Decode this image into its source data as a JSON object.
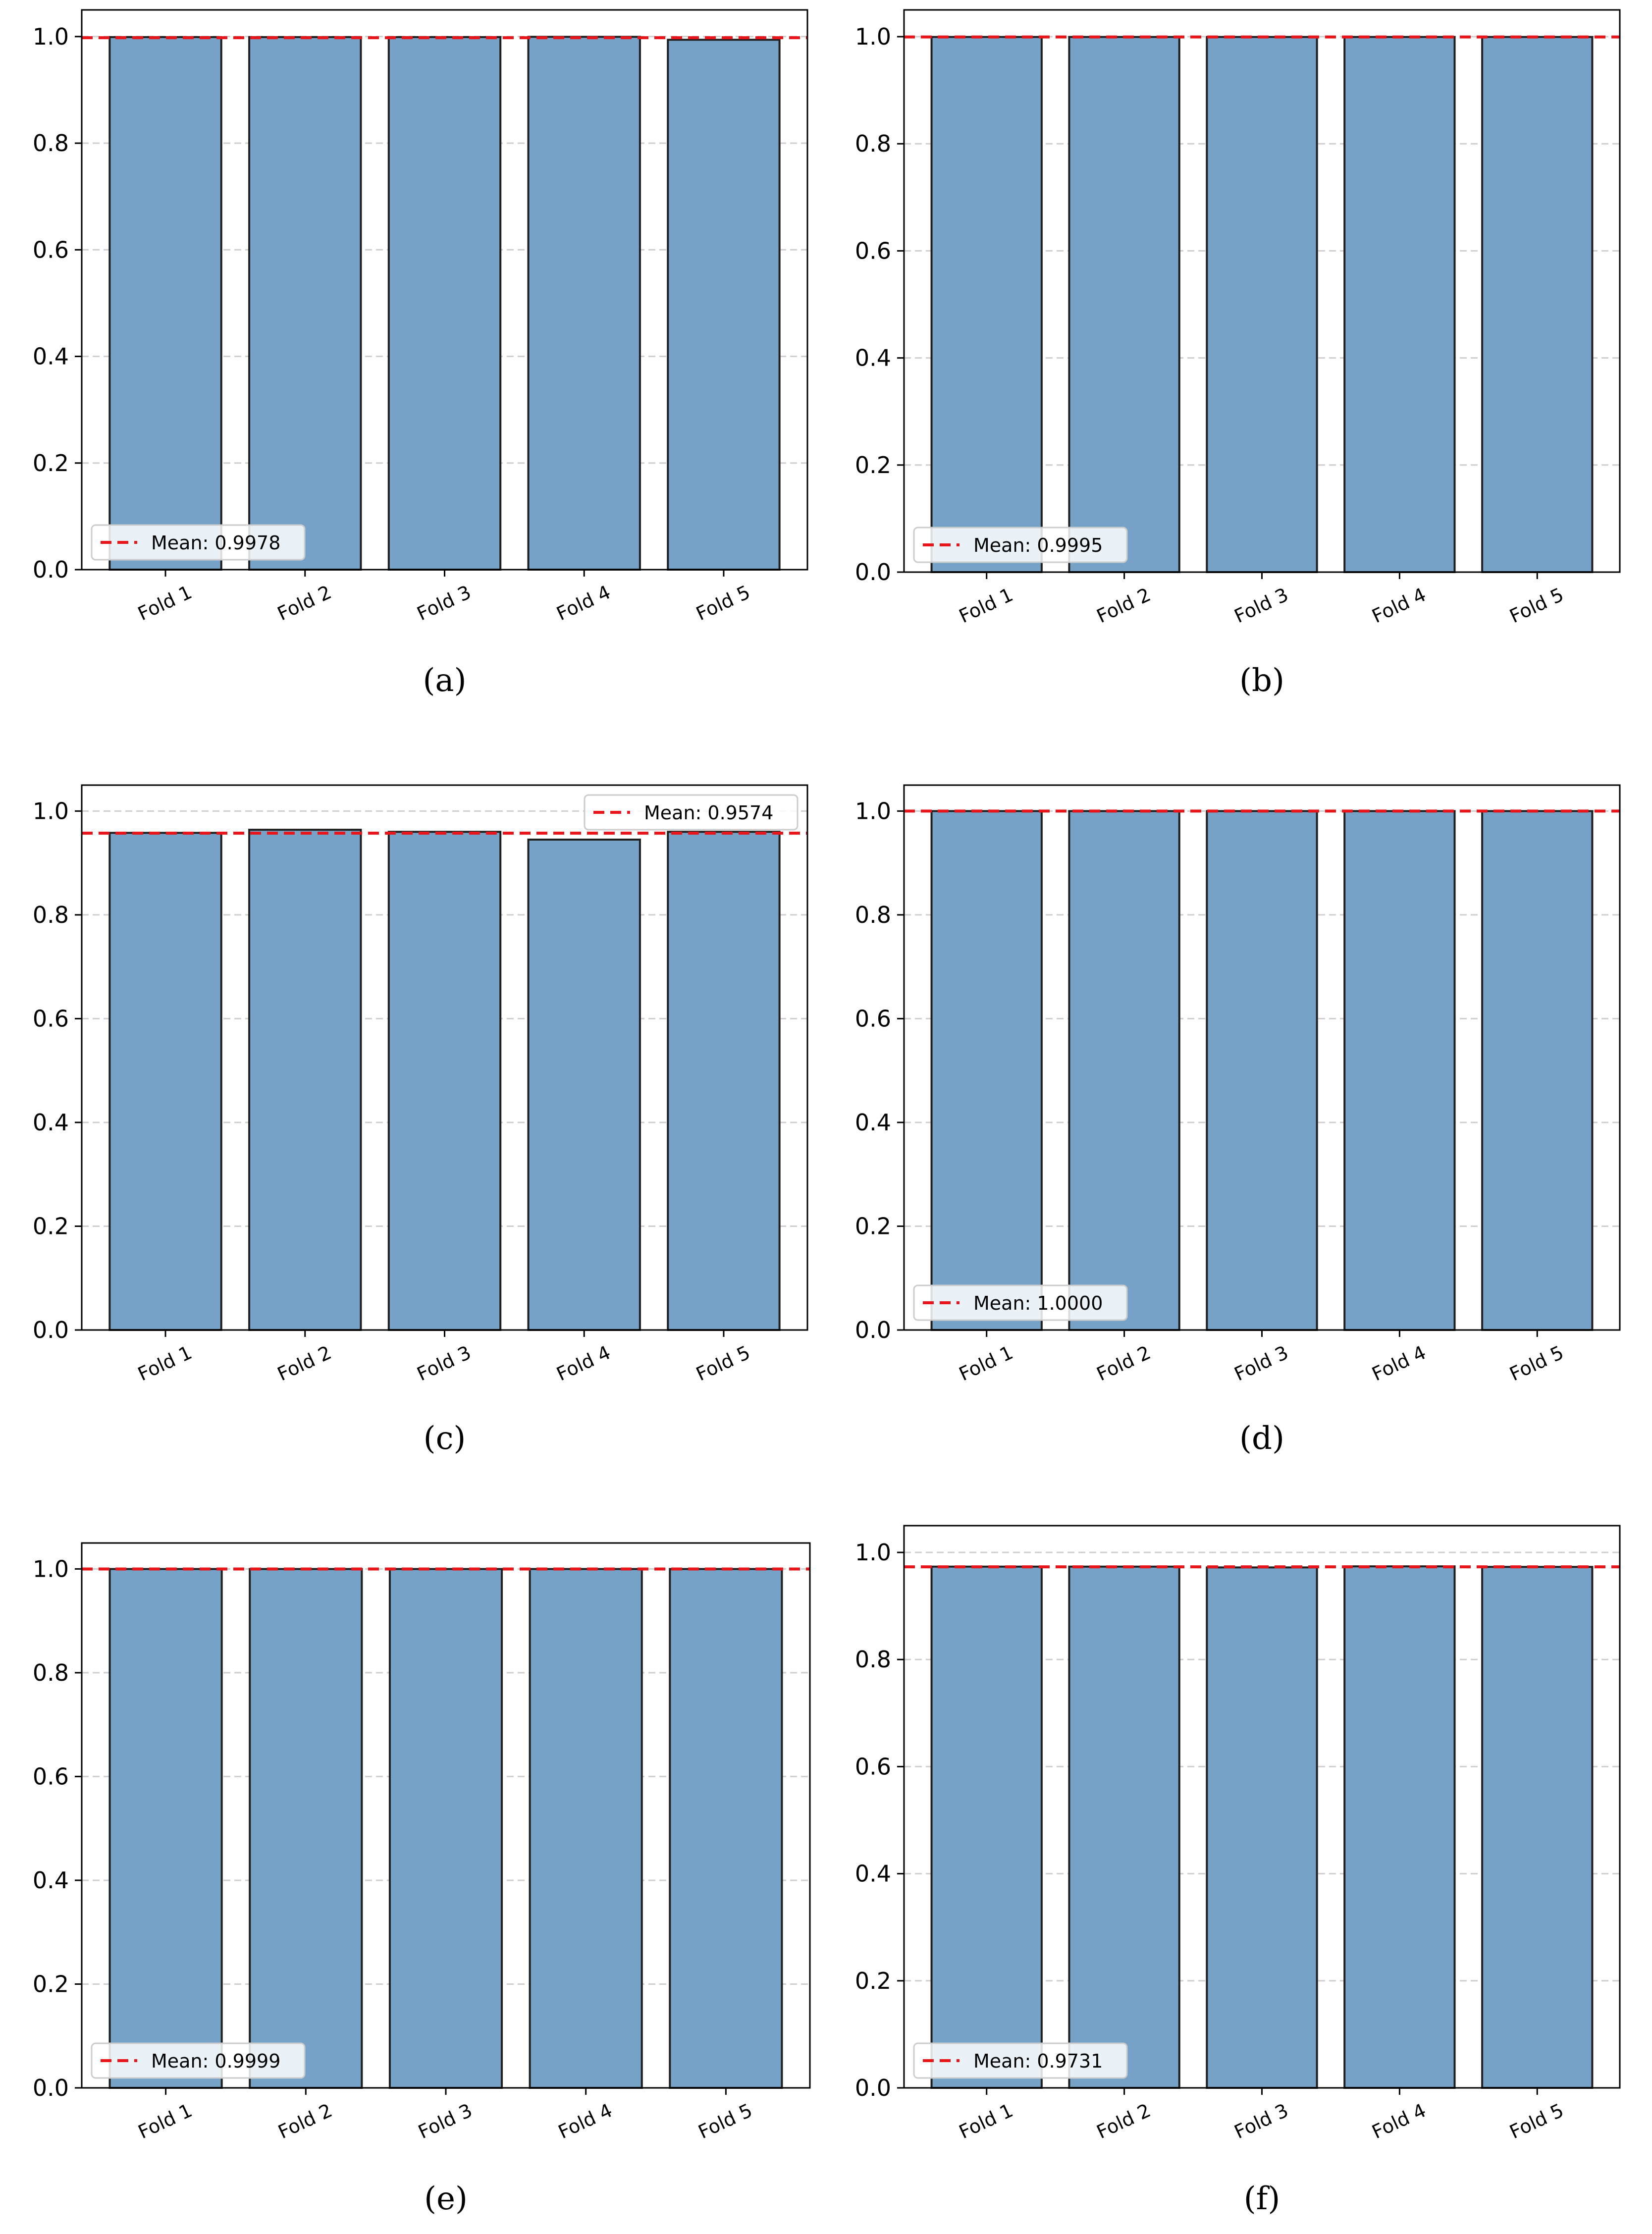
{
  "figure": {
    "charts": [
      {
        "type": "bar",
        "panel": "(a)",
        "panel_letter": "a",
        "categories": [
          "Fold 1",
          "Fold 2",
          "Fold 3",
          "Fold 4",
          "Fold 5"
        ],
        "values": [
          0.999,
          0.999,
          0.999,
          0.9995,
          0.994
        ],
        "mean": 0.9978,
        "mean_label": "Mean: 0.9978",
        "ylim": [
          0,
          1.05
        ],
        "yticks": [
          "0.0",
          "0.2",
          "0.4",
          "0.6",
          "0.8",
          "1.0"
        ],
        "grid": "y-dashed",
        "legend_position": "lower-left",
        "bar_color": "#75a2c6",
        "mean_line_color": "#e8161b"
      },
      {
        "type": "bar",
        "panel": "(b)",
        "panel_letter": "b",
        "categories": [
          "Fold 1",
          "Fold 2",
          "Fold 3",
          "Fold 4",
          "Fold 5"
        ],
        "values": [
          0.9995,
          0.9995,
          0.9995,
          0.9995,
          0.9995
        ],
        "mean": 0.9995,
        "mean_label": "Mean: 0.9995",
        "ylim": [
          0,
          1.05
        ],
        "yticks": [
          "0.0",
          "0.2",
          "0.4",
          "0.6",
          "0.8",
          "1.0"
        ],
        "grid": "y-dashed",
        "legend_position": "lower-left",
        "bar_color": "#75a2c6",
        "mean_line_color": "#e8161b"
      },
      {
        "type": "bar",
        "panel": "(c)",
        "panel_letter": "c",
        "categories": [
          "Fold 1",
          "Fold 2",
          "Fold 3",
          "Fold 4",
          "Fold 5"
        ],
        "values": [
          0.958,
          0.964,
          0.96,
          0.945,
          0.96
        ],
        "mean": 0.9574,
        "mean_label": "Mean: 0.9574",
        "ylim": [
          0,
          1.05
        ],
        "yticks": [
          "0.0",
          "0.2",
          "0.4",
          "0.6",
          "0.8",
          "1.0"
        ],
        "grid": "y-dashed",
        "legend_position": "upper-right",
        "bar_color": "#75a2c6",
        "mean_line_color": "#e8161b"
      },
      {
        "type": "bar",
        "panel": "(d)",
        "panel_letter": "d",
        "categories": [
          "Fold 1",
          "Fold 2",
          "Fold 3",
          "Fold 4",
          "Fold 5"
        ],
        "values": [
          1.0,
          1.0,
          1.0,
          1.0,
          1.0
        ],
        "mean": 1.0,
        "mean_label": "Mean: 1.0000",
        "ylim": [
          0,
          1.05
        ],
        "yticks": [
          "0.0",
          "0.2",
          "0.4",
          "0.6",
          "0.8",
          "1.0"
        ],
        "grid": "y-dashed",
        "legend_position": "lower-left",
        "bar_color": "#75a2c6",
        "mean_line_color": "#e8161b"
      },
      {
        "type": "bar",
        "panel": "(e)",
        "panel_letter": "e",
        "categories": [
          "Fold 1",
          "Fold 2",
          "Fold 3",
          "Fold 4",
          "Fold 5"
        ],
        "values": [
          0.9999,
          0.9999,
          0.9999,
          0.9999,
          0.9999
        ],
        "mean": 0.9999,
        "mean_label": "Mean: 0.9999",
        "ylim": [
          0,
          1.05
        ],
        "yticks": [
          "0.0",
          "0.2",
          "0.4",
          "0.6",
          "0.8",
          "1.0"
        ],
        "grid": "y-dashed",
        "legend_position": "lower-left",
        "bar_color": "#75a2c6",
        "mean_line_color": "#e8161b"
      },
      {
        "type": "bar",
        "panel": "(f)",
        "panel_letter": "f",
        "categories": [
          "Fold 1",
          "Fold 2",
          "Fold 3",
          "Fold 4",
          "Fold 5"
        ],
        "values": [
          0.9735,
          0.9735,
          0.972,
          0.974,
          0.973
        ],
        "mean": 0.9731,
        "mean_label": "Mean: 0.9731",
        "ylim": [
          0,
          1.05
        ],
        "yticks": [
          "0.0",
          "0.2",
          "0.4",
          "0.6",
          "0.8",
          "1.0"
        ],
        "grid": "y-dashed",
        "legend_position": "lower-left",
        "bar_color": "#75a2c6",
        "mean_line_color": "#e8161b"
      }
    ]
  },
  "chart_data": [
    {
      "type": "bar",
      "categories": [
        "Fold 1",
        "Fold 2",
        "Fold 3",
        "Fold 4",
        "Fold 5"
      ],
      "values": [
        0.999,
        0.999,
        0.999,
        0.9995,
        0.994
      ],
      "mean": 0.9978,
      "ylim": [
        0,
        1.05
      ],
      "grid": true,
      "legend_position": "lower-left"
    },
    {
      "type": "bar",
      "categories": [
        "Fold 1",
        "Fold 2",
        "Fold 3",
        "Fold 4",
        "Fold 5"
      ],
      "values": [
        0.9995,
        0.9995,
        0.9995,
        0.9995,
        0.9995
      ],
      "mean": 0.9995,
      "ylim": [
        0,
        1.05
      ],
      "grid": true,
      "legend_position": "lower-left"
    },
    {
      "type": "bar",
      "categories": [
        "Fold 1",
        "Fold 2",
        "Fold 3",
        "Fold 4",
        "Fold 5"
      ],
      "values": [
        0.958,
        0.964,
        0.96,
        0.945,
        0.96
      ],
      "mean": 0.9574,
      "ylim": [
        0,
        1.05
      ],
      "grid": true,
      "legend_position": "upper-right"
    },
    {
      "type": "bar",
      "categories": [
        "Fold 1",
        "Fold 2",
        "Fold 3",
        "Fold 4",
        "Fold 5"
      ],
      "values": [
        1.0,
        1.0,
        1.0,
        1.0,
        1.0
      ],
      "mean": 1.0,
      "ylim": [
        0,
        1.05
      ],
      "grid": true,
      "legend_position": "lower-left"
    },
    {
      "type": "bar",
      "categories": [
        "Fold 1",
        "Fold 2",
        "Fold 3",
        "Fold 4",
        "Fold 5"
      ],
      "values": [
        0.9999,
        0.9999,
        0.9999,
        0.9999,
        0.9999
      ],
      "mean": 0.9999,
      "ylim": [
        0,
        1.05
      ],
      "grid": true,
      "legend_position": "lower-left"
    },
    {
      "type": "bar",
      "categories": [
        "Fold 1",
        "Fold 2",
        "Fold 3",
        "Fold 4",
        "Fold 5"
      ],
      "values": [
        0.9735,
        0.9735,
        0.972,
        0.974,
        0.973
      ],
      "mean": 0.9731,
      "ylim": [
        0,
        1.05
      ],
      "grid": true,
      "legend_position": "lower-left"
    }
  ]
}
